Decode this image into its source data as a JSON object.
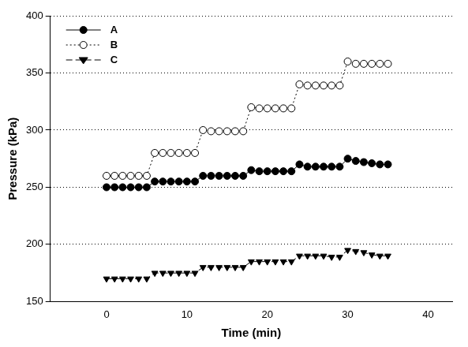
{
  "chart_data": {
    "type": "line",
    "x_label": "Time (min)",
    "y_label": "Pressure (kPa)",
    "x": [
      0,
      1,
      2,
      3,
      4,
      5,
      6,
      7,
      8,
      9,
      10,
      11,
      12,
      13,
      14,
      15,
      16,
      17,
      18,
      19,
      20,
      21,
      22,
      23,
      24,
      25,
      26,
      27,
      28,
      29,
      30,
      31,
      32,
      33,
      34,
      35
    ],
    "series": [
      {
        "name": "A",
        "color": "#000000",
        "marker": "circle",
        "line_style": "solid",
        "values": [
          250,
          250,
          250,
          250,
          250,
          250,
          255,
          255,
          255,
          255,
          255,
          255,
          260,
          260,
          260,
          260,
          260,
          260,
          265,
          264,
          264,
          264,
          264,
          264,
          270,
          268,
          268,
          268,
          268,
          268,
          275,
          273,
          272,
          271,
          270,
          270
        ]
      },
      {
        "name": "B",
        "color": "#000000",
        "marker": "circle_open",
        "line_style": "dotted",
        "values": [
          260,
          260,
          260,
          260,
          260,
          260,
          280,
          280,
          280,
          280,
          280,
          280,
          300,
          299,
          299,
          299,
          299,
          299,
          320,
          319,
          319,
          319,
          319,
          319,
          340,
          339,
          339,
          339,
          339,
          339,
          360,
          358,
          358,
          358,
          358,
          358
        ]
      },
      {
        "name": "C",
        "color": "#000000",
        "marker": "triangle_down",
        "line_style": "dashed",
        "values": [
          170,
          170,
          170,
          170,
          170,
          170,
          175,
          175,
          175,
          175,
          175,
          175,
          180,
          180,
          180,
          180,
          180,
          180,
          185,
          185,
          185,
          185,
          185,
          185,
          190,
          190,
          190,
          190,
          189,
          189,
          195,
          194,
          193,
          191,
          190,
          190
        ]
      }
    ],
    "xlim": [
      -7,
      43
    ],
    "xticks": [
      0,
      10,
      20,
      30,
      40
    ],
    "ylim": [
      150,
      400
    ],
    "yticks": [
      150,
      200,
      250,
      300,
      350,
      400
    ],
    "grid": "y",
    "legend": "top-left"
  }
}
